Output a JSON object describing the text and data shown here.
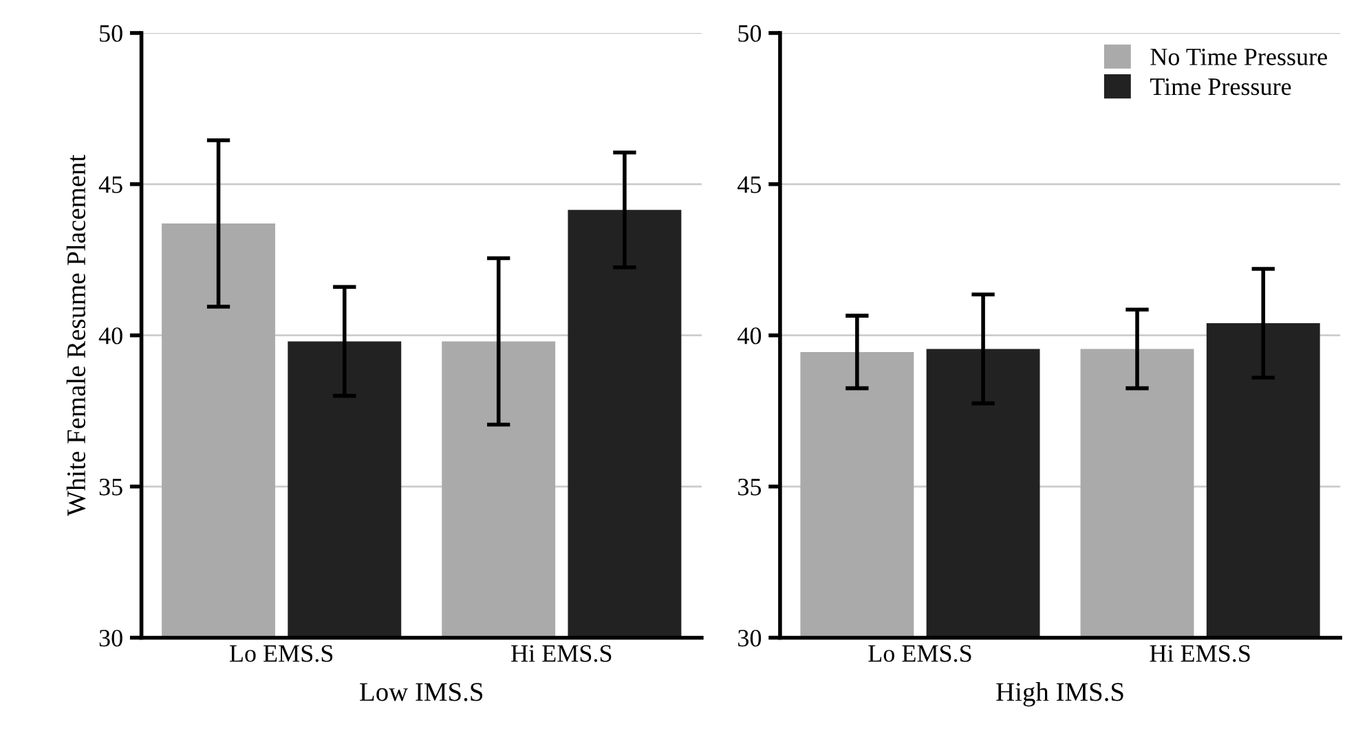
{
  "chart_data": [
    {
      "type": "bar",
      "ylabel": "White Female Resume Placement",
      "xlabel": "Low IMS.S",
      "categories": [
        "Lo EMS.S",
        "Hi EMS.S"
      ],
      "ylim": [
        30,
        50
      ],
      "yticks": [
        30,
        35,
        40,
        45,
        50
      ],
      "grid": "y",
      "legend": false,
      "series": [
        {
          "color": "#aaaaaa",
          "values": [
            43.7,
            39.8
          ],
          "errors": [
            2.75,
            2.75
          ]
        },
        {
          "color": "#222222",
          "values": [
            39.8,
            44.15
          ],
          "errors": [
            1.8,
            1.9
          ]
        }
      ]
    },
    {
      "type": "bar",
      "xlabel": "High IMS.S",
      "categories": [
        "Lo EMS.S",
        "Hi EMS.S"
      ],
      "ylim": [
        30,
        50
      ],
      "yticks": [
        30,
        35,
        40,
        45,
        50
      ],
      "grid": "y",
      "legend": "top right",
      "series": [
        {
          "name": "No Time Pressure",
          "color": "#aaaaaa",
          "values": [
            39.45,
            39.55
          ],
          "errors": [
            1.2,
            1.3
          ]
        },
        {
          "name": "Time Pressure",
          "color": "#222222",
          "values": [
            39.55,
            40.4
          ],
          "errors": [
            1.8,
            1.8
          ]
        }
      ]
    }
  ]
}
